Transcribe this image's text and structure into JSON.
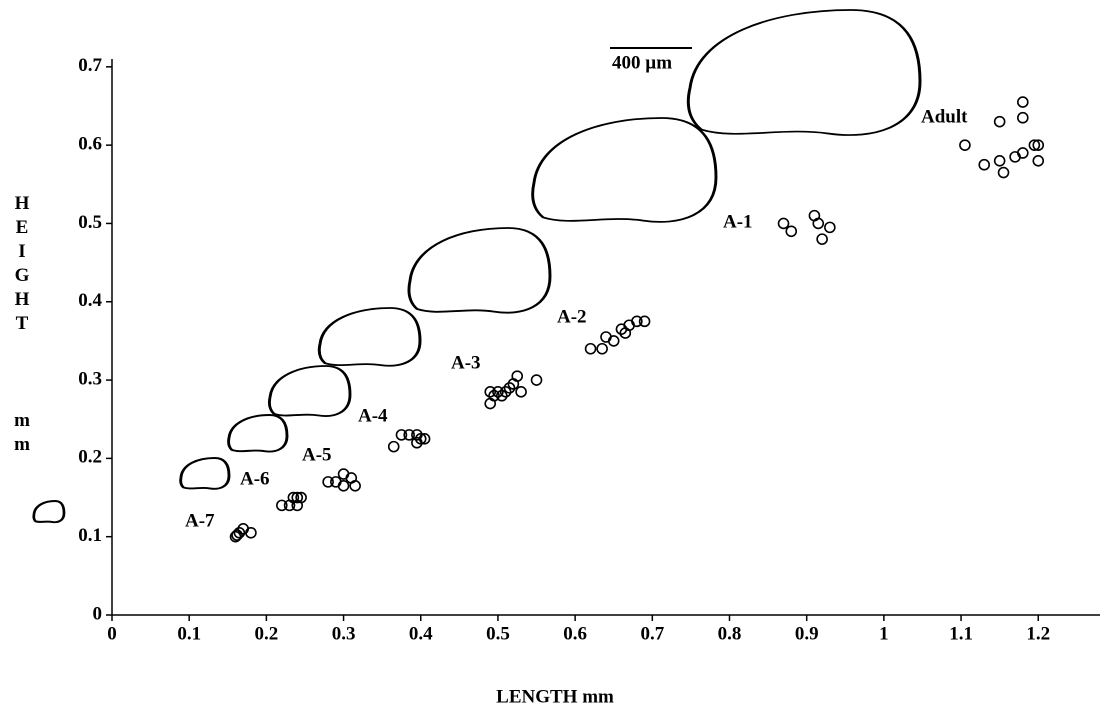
{
  "chart_data": {
    "type": "scatter",
    "xlabel": "LENGTH  mm",
    "ylabel": "HEIGHT",
    "ylabel_unit": "mm",
    "scale_bar_label": "400 µm",
    "xlim": [
      0,
      1.28
    ],
    "ylim": [
      0,
      0.71
    ],
    "xticks": [
      0,
      0.1,
      0.2,
      0.3,
      0.4,
      0.5,
      0.6,
      0.7,
      0.8,
      0.9,
      1,
      1.1,
      1.2
    ],
    "yticks": [
      0,
      0.1,
      0.2,
      0.3,
      0.4,
      0.5,
      0.6,
      0.7
    ],
    "marker_color": "#000000",
    "series": [
      {
        "name": "A-7",
        "x": [
          0.16,
          0.162,
          0.165,
          0.17,
          0.18
        ],
        "y": [
          0.1,
          0.102,
          0.105,
          0.11,
          0.105
        ]
      },
      {
        "name": "A-6",
        "x": [
          0.22,
          0.23,
          0.235,
          0.24,
          0.245,
          0.24
        ],
        "y": [
          0.14,
          0.14,
          0.15,
          0.15,
          0.15,
          0.14
        ]
      },
      {
        "name": "A-5",
        "x": [
          0.28,
          0.29,
          0.3,
          0.3,
          0.31,
          0.315
        ],
        "y": [
          0.17,
          0.17,
          0.18,
          0.165,
          0.175,
          0.165
        ]
      },
      {
        "name": "A-4",
        "x": [
          0.365,
          0.375,
          0.385,
          0.395,
          0.395,
          0.4,
          0.405
        ],
        "y": [
          0.215,
          0.23,
          0.23,
          0.22,
          0.23,
          0.225,
          0.225
        ]
      },
      {
        "name": "A-3",
        "x": [
          0.49,
          0.49,
          0.495,
          0.5,
          0.505,
          0.51,
          0.515,
          0.52,
          0.525,
          0.53,
          0.55
        ],
        "y": [
          0.27,
          0.285,
          0.28,
          0.285,
          0.28,
          0.285,
          0.29,
          0.295,
          0.305,
          0.285,
          0.3
        ]
      },
      {
        "name": "A-2",
        "x": [
          0.62,
          0.635,
          0.64,
          0.65,
          0.66,
          0.665,
          0.67,
          0.68,
          0.69
        ],
        "y": [
          0.34,
          0.34,
          0.355,
          0.35,
          0.365,
          0.36,
          0.37,
          0.375,
          0.375
        ]
      },
      {
        "name": "A-1",
        "x": [
          0.87,
          0.88,
          0.91,
          0.915,
          0.92,
          0.93
        ],
        "y": [
          0.5,
          0.49,
          0.51,
          0.5,
          0.48,
          0.495
        ]
      },
      {
        "name": "Adult",
        "x": [
          1.105,
          1.13,
          1.15,
          1.15,
          1.155,
          1.17,
          1.18,
          1.18,
          1.18,
          1.195,
          1.2,
          1.2
        ],
        "y": [
          0.6,
          0.575,
          0.63,
          0.58,
          0.565,
          0.585,
          0.59,
          0.655,
          0.635,
          0.6,
          0.6,
          0.58
        ]
      }
    ]
  }
}
